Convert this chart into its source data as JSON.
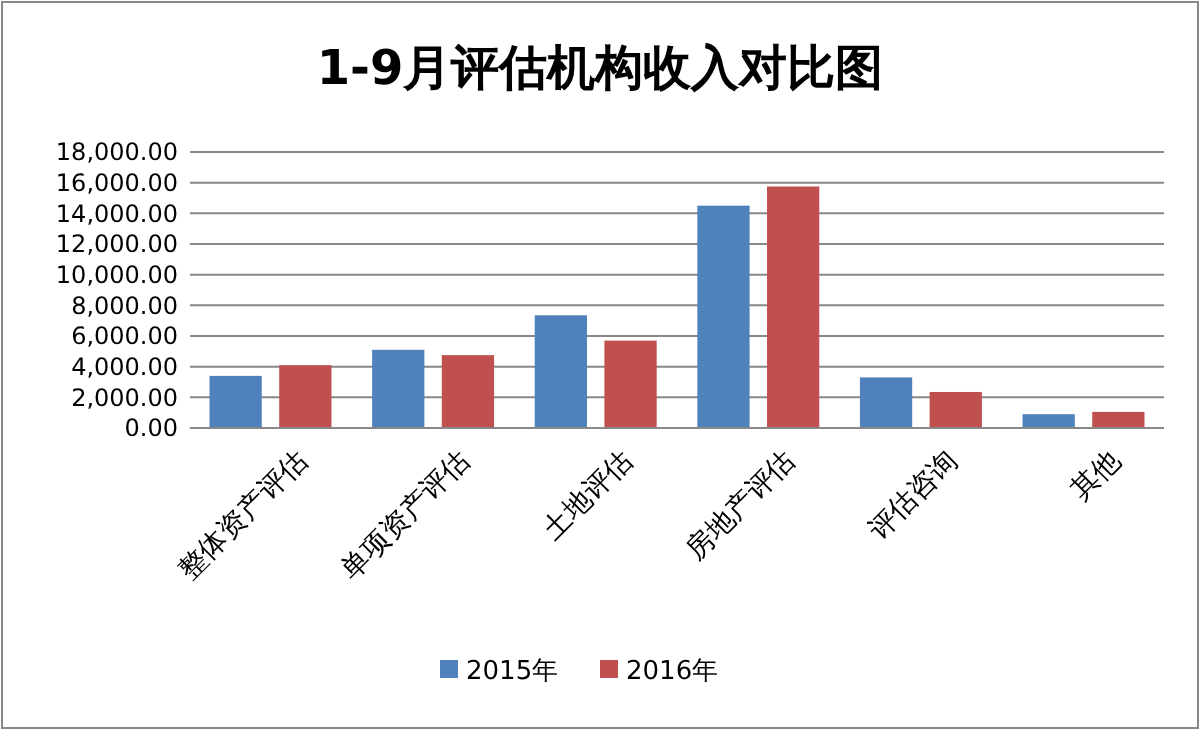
{
  "chart_data": {
    "type": "bar",
    "title": "1-9月评估机构收入对比图",
    "categories": [
      "整体资产评估",
      "单项资产评估",
      "土地评估",
      "房地产评估",
      "评估咨询",
      "其他"
    ],
    "series": [
      {
        "name": "2015年",
        "color": "#4f81bd",
        "values": [
          3400,
          5100,
          7350,
          14500,
          3300,
          900
        ]
      },
      {
        "name": "2016年",
        "color": "#c0504d",
        "values": [
          4100,
          4750,
          5700,
          15750,
          2350,
          1050
        ]
      }
    ],
    "ylim": [
      0,
      18000
    ],
    "yticks": [
      {
        "value": 0,
        "label": "0.00"
      },
      {
        "value": 2000,
        "label": "2,000.00"
      },
      {
        "value": 4000,
        "label": "4,000.00"
      },
      {
        "value": 6000,
        "label": "6,000.00"
      },
      {
        "value": 8000,
        "label": "8,000.00"
      },
      {
        "value": 10000,
        "label": "10,000.00"
      },
      {
        "value": 12000,
        "label": "12,000.00"
      },
      {
        "value": 14000,
        "label": "14,000.00"
      },
      {
        "value": 16000,
        "label": "16,000.00"
      },
      {
        "value": 18000,
        "label": "18,000.00"
      }
    ],
    "grid": "y",
    "legend": "bottom"
  }
}
